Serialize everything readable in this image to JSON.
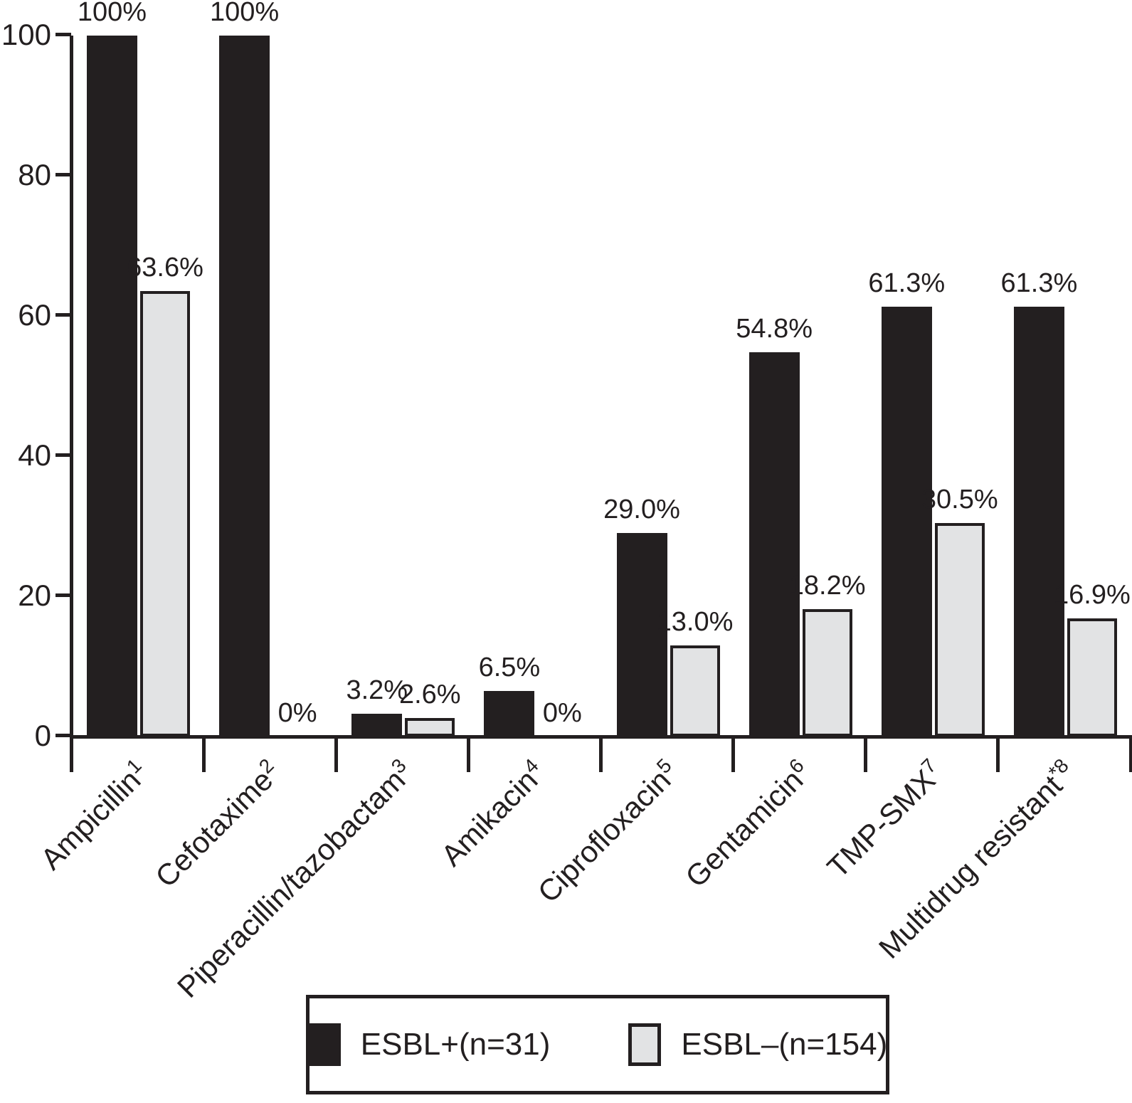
{
  "chart_data": {
    "type": "bar",
    "title": "",
    "xlabel": "",
    "ylabel": "",
    "ylim": [
      0,
      100
    ],
    "yticks": [
      0,
      20,
      40,
      60,
      80,
      100
    ],
    "ytick_labels": [
      "0",
      "20",
      "40",
      "60",
      "80",
      "100"
    ],
    "grid": false,
    "legend_position": "bottom",
    "categories": [
      {
        "label": "Ampicillin",
        "sup": "1"
      },
      {
        "label": "Cefotaxime",
        "sup": "2"
      },
      {
        "label": "Piperacillin/tazobactam",
        "sup": "3"
      },
      {
        "label": "Amikacin",
        "sup": "4"
      },
      {
        "label": "Ciprofloxacin",
        "sup": "5"
      },
      {
        "label": "Gentamicin",
        "sup": "6"
      },
      {
        "label": "TMP-SMX",
        "sup": "7"
      },
      {
        "label": "Multidrug resistant",
        "sup": "*8"
      }
    ],
    "series": [
      {
        "name": "ESBL+(n=31)",
        "color": "#231f20",
        "values": [
          100,
          100,
          3.2,
          6.5,
          29.0,
          54.8,
          61.3,
          61.3
        ],
        "labels": [
          "100%",
          "100%",
          "3.2%",
          "6.5%",
          "29.0%",
          "54.8%",
          "61.3%",
          "61.3%"
        ]
      },
      {
        "name": "ESBL–(n=154)",
        "color": "#e2e3e4",
        "border_color": "#231f20",
        "values": [
          63.6,
          0,
          2.6,
          0,
          13.0,
          18.2,
          30.5,
          16.9
        ],
        "labels": [
          "63.6%",
          "0%",
          "2.6%",
          "0%",
          "13.0%",
          "18.2%",
          "30.5%",
          "16.9%"
        ]
      }
    ]
  },
  "legend": {
    "entries": [
      {
        "label": "ESBL+(n=31)",
        "swatch": "black-filled-square-icon"
      },
      {
        "label": "ESBL–(n=154)",
        "swatch": "gray-filled-square-icon"
      }
    ]
  }
}
